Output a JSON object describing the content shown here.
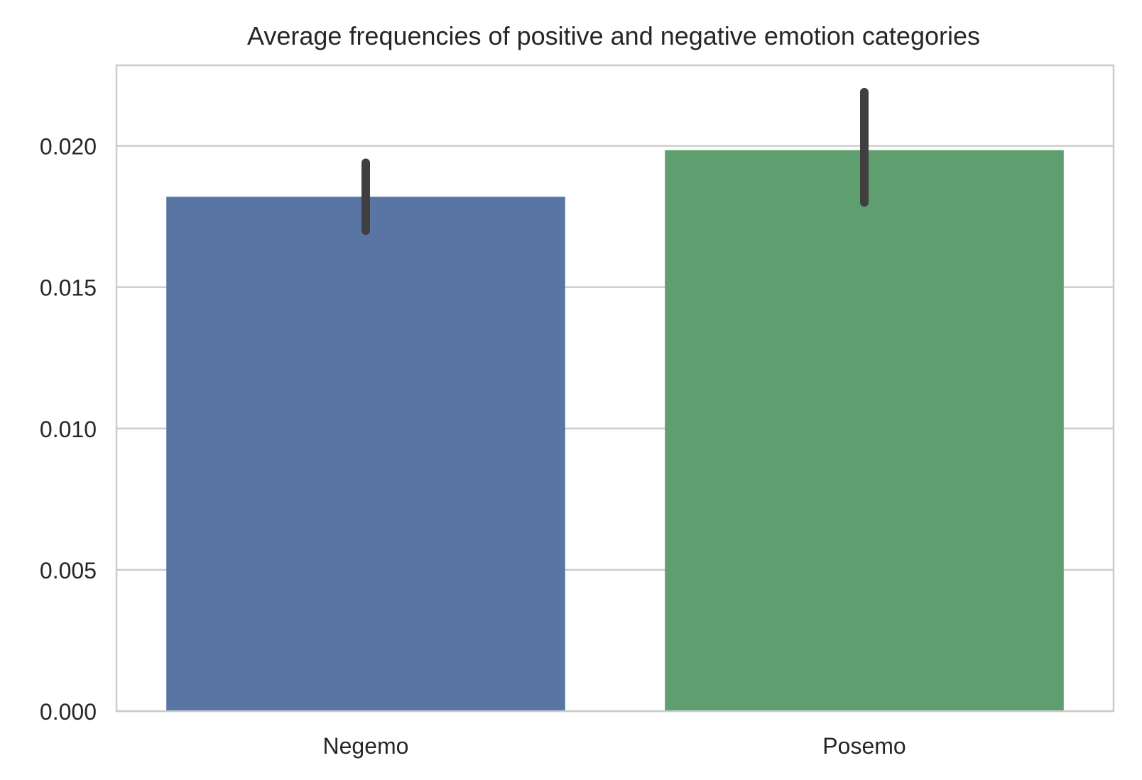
{
  "chart_data": {
    "type": "bar",
    "title": "Average frequencies of positive and negative emotion categories",
    "xlabel": "",
    "ylabel": "",
    "categories": [
      "Negemo",
      "Posemo"
    ],
    "values": [
      0.0182,
      0.01985
    ],
    "error_bars": [
      {
        "low": 0.017,
        "high": 0.0194
      },
      {
        "low": 0.018,
        "high": 0.0219
      }
    ],
    "colors": [
      "#5975a4",
      "#5f9e6e"
    ],
    "error_bar_color": "#3f3f3f",
    "ylim": [
      0,
      0.02285
    ],
    "yticks": [
      "0.000",
      "0.005",
      "0.010",
      "0.015",
      "0.020"
    ],
    "ytick_values": [
      0,
      0.005,
      0.01,
      0.015,
      0.02
    ],
    "grid": true,
    "grid_axis": "y",
    "legend": "none"
  }
}
